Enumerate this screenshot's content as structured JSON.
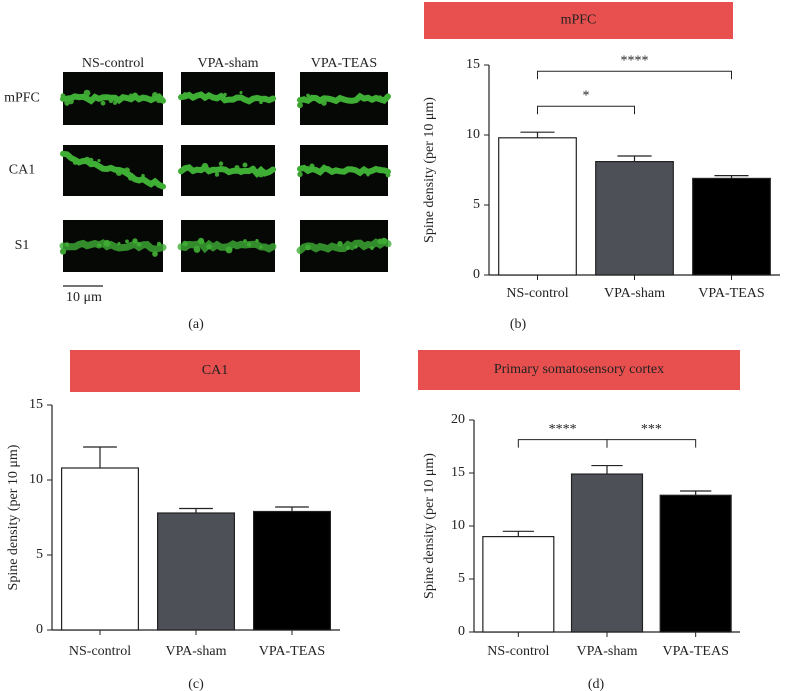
{
  "panel_a": {
    "columns": [
      "NS-control",
      "VPA-sham",
      "VPA-TEAS"
    ],
    "rows": [
      "mPFC",
      "CA1",
      "S1"
    ],
    "scale_bar": "10 μm",
    "label": "(a)"
  },
  "chart_data": [
    {
      "type": "bar",
      "title": "mPFC",
      "ylabel": "Spine density (per 10 μm)",
      "panel_label": "(b)",
      "categories": [
        "NS-control",
        "VPA-sham",
        "VPA-TEAS"
      ],
      "values": [
        9.8,
        8.1,
        6.9
      ],
      "errors": [
        0.4,
        0.4,
        0.2
      ],
      "colors": [
        "#ffffff",
        "#4d5057",
        "#000000"
      ],
      "ylim": [
        0,
        15
      ],
      "yticks": [
        0,
        5,
        10,
        15
      ],
      "annotations": [
        {
          "text": "*",
          "between": [
            "NS-control",
            "VPA-sham"
          ]
        },
        {
          "text": "****",
          "between": [
            "NS-control",
            "VPA-TEAS"
          ]
        }
      ]
    },
    {
      "type": "bar",
      "title": "CA1",
      "ylabel": "Spine density (per 10 μm)",
      "panel_label": "(c)",
      "categories": [
        "NS-control",
        "VPA-sham",
        "VPA-TEAS"
      ],
      "values": [
        10.8,
        7.8,
        7.9
      ],
      "errors": [
        1.4,
        0.3,
        0.3
      ],
      "colors": [
        "#ffffff",
        "#4d5057",
        "#000000"
      ],
      "ylim": [
        0,
        15
      ],
      "yticks": [
        0,
        5,
        10,
        15
      ],
      "annotations": []
    },
    {
      "type": "bar",
      "title": "Primary somatosensory cortex",
      "ylabel": "Spine density (per 10 μm)",
      "panel_label": "(d)",
      "categories": [
        "NS-control",
        "VPA-sham",
        "VPA-TEAS"
      ],
      "values": [
        9.0,
        14.9,
        12.9
      ],
      "errors": [
        0.5,
        0.8,
        0.4
      ],
      "colors": [
        "#ffffff",
        "#4d5057",
        "#000000"
      ],
      "ylim": [
        0,
        20
      ],
      "yticks": [
        0,
        5,
        10,
        15,
        20
      ],
      "annotations": [
        {
          "text": "****",
          "between": [
            "NS-control",
            "VPA-sham"
          ]
        },
        {
          "text": "***",
          "between": [
            "VPA-sham",
            "VPA-TEAS"
          ]
        }
      ]
    }
  ]
}
